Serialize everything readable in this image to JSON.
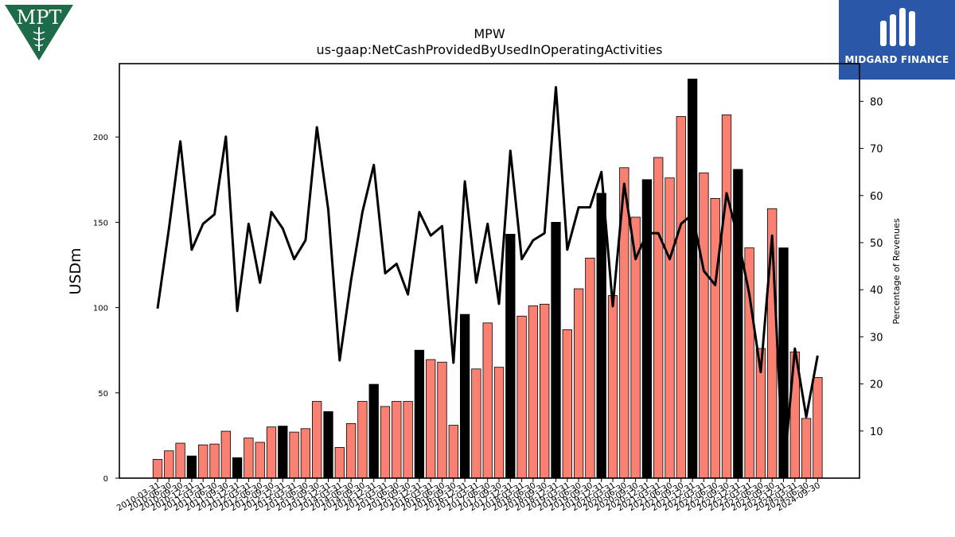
{
  "logos": {
    "left_text": "MPT",
    "right_text": "MIDGARD FINANCE",
    "left_color": "#1e6b4a",
    "right_color": "#2a57a8"
  },
  "chart_data": {
    "type": "bar",
    "title": "MPW",
    "subtitle": "us-gaap:NetCashProvidedByUsedInOperatingActivities",
    "ylabel": "USDm",
    "y2label": "Percentage of Revenues",
    "ylim": [
      0,
      243
    ],
    "y2lim": [
      0,
      88
    ],
    "yticks": [
      0,
      50,
      100,
      150,
      200
    ],
    "y2ticks": [
      10,
      20,
      30,
      40,
      50,
      60,
      70,
      80
    ],
    "colors": {
      "quarter": "#fa8072",
      "year_end": "#000000",
      "line": "#000000"
    },
    "categories": [
      "2010-03-31",
      "2010-06-30",
      "2010-09-30",
      "2010-12-31",
      "2011-03-31",
      "2011-06-30",
      "2011-09-30",
      "2011-12-31",
      "2012-03-31",
      "2012-06-30",
      "2012-09-30",
      "2012-12-31",
      "2013-03-31",
      "2013-06-30",
      "2013-09-30",
      "2013-12-31",
      "2014-03-31",
      "2014-06-30",
      "2014-09-30",
      "2014-12-31",
      "2015-03-31",
      "2015-06-30",
      "2015-09-30",
      "2015-12-31",
      "2016-03-31",
      "2016-06-30",
      "2016-09-30",
      "2016-12-31",
      "2017-03-31",
      "2017-06-30",
      "2017-09-30",
      "2017-12-31",
      "2018-03-31",
      "2018-06-30",
      "2018-09-30",
      "2018-12-31",
      "2019-03-31",
      "2019-06-30",
      "2019-09-30",
      "2019-12-31",
      "2020-03-31",
      "2020-06-30",
      "2020-09-30",
      "2020-12-31",
      "2021-03-31",
      "2021-06-30",
      "2021-09-30",
      "2021-12-31",
      "2022-03-31",
      "2022-06-30",
      "2022-09-30",
      "2022-12-31",
      "2023-03-31",
      "2023-06-30",
      "2023-09-30",
      "2023-12-31",
      "2024-03-31",
      "2024-06-30",
      "2024-09-30"
    ],
    "values": [
      11,
      16,
      20.5,
      13,
      19.5,
      20,
      27.5,
      12,
      23.5,
      21,
      30,
      30.5,
      27,
      29,
      45,
      39,
      18,
      32,
      45,
      55,
      42,
      45,
      45,
      75,
      69.5,
      68,
      31,
      96,
      64,
      91,
      65,
      143,
      95,
      101,
      102,
      150,
      87,
      111,
      129,
      167,
      107,
      182,
      153,
      175,
      188,
      176,
      212,
      234,
      179,
      164,
      213,
      181,
      135,
      76,
      158,
      135,
      74,
      35,
      59
    ],
    "is_year_end": [
      false,
      false,
      false,
      true,
      false,
      false,
      false,
      true,
      false,
      false,
      false,
      true,
      false,
      false,
      false,
      true,
      false,
      false,
      false,
      true,
      false,
      false,
      false,
      true,
      false,
      false,
      false,
      true,
      false,
      false,
      false,
      true,
      false,
      false,
      false,
      true,
      false,
      false,
      false,
      true,
      false,
      false,
      false,
      true,
      false,
      false,
      false,
      true,
      false,
      false,
      false,
      true,
      false,
      false,
      false,
      true,
      false,
      false,
      false
    ],
    "line_series": {
      "name": "Percentage of Revenues",
      "values": [
        36,
        53,
        71.5,
        48.5,
        54,
        56,
        72.5,
        35.5,
        54,
        41.5,
        56.5,
        53,
        46.5,
        50.5,
        74.5,
        57,
        25,
        42,
        56.5,
        66.5,
        43.5,
        45.5,
        39,
        56.5,
        51.5,
        53.5,
        24.5,
        63,
        41.5,
        54,
        37,
        69.5,
        46.5,
        50.5,
        52,
        83,
        48.5,
        57.5,
        57.5,
        65,
        36.5,
        62.5,
        46.5,
        52,
        52,
        46.5,
        54,
        56,
        44,
        41,
        60.5,
        51,
        39,
        22.5,
        51.5,
        0.5,
        27.5,
        13,
        26
      ]
    }
  }
}
